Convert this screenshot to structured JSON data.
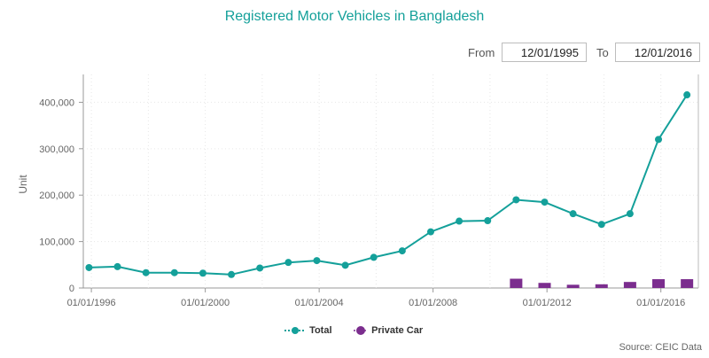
{
  "chart_data": {
    "type": "line",
    "title": "Registered Motor Vehicles in Bangladesh",
    "ylabel": "Unit",
    "ylim": [
      0,
      460000
    ],
    "y_ticks": [
      {
        "v": 0,
        "label": "0"
      },
      {
        "v": 100000,
        "label": "100,000"
      },
      {
        "v": 200000,
        "label": "200,000"
      },
      {
        "v": 300000,
        "label": "300,000"
      },
      {
        "v": 400000,
        "label": "400,000"
      }
    ],
    "x_ticks": [
      "01/01/1996",
      "01/01/2000",
      "01/01/2004",
      "01/01/2008",
      "01/01/2012",
      "01/01/2016"
    ],
    "x": [
      "12/1995",
      "12/1996",
      "12/1997",
      "12/1998",
      "12/1999",
      "12/2000",
      "12/2001",
      "12/2002",
      "12/2003",
      "12/2004",
      "12/2005",
      "12/2006",
      "12/2007",
      "12/2008",
      "12/2009",
      "12/2010",
      "12/2011",
      "12/2012",
      "12/2013",
      "12/2014",
      "12/2015",
      "12/2016"
    ],
    "series": [
      {
        "name": "Total",
        "type": "line",
        "color": "#14a09a",
        "values": [
          44000,
          46000,
          33000,
          33000,
          32000,
          29000,
          43000,
          55000,
          59000,
          49000,
          66000,
          80000,
          121000,
          144000,
          145000,
          190000,
          185000,
          160000,
          137000,
          160000,
          320000,
          416000
        ]
      },
      {
        "name": "Private Car",
        "type": "bar",
        "color": "#7b2d8e",
        "values": [
          null,
          null,
          null,
          null,
          null,
          null,
          null,
          null,
          null,
          null,
          null,
          null,
          null,
          null,
          null,
          20000,
          11000,
          7000,
          8000,
          13000,
          19000,
          19000
        ]
      }
    ],
    "grid": true,
    "legend": "bottom-center"
  },
  "controls": {
    "from_label": "From",
    "from_value": "12/01/1995",
    "to_label": "To",
    "to_value": "12/01/2016"
  },
  "source": "Source: CEIC Data"
}
